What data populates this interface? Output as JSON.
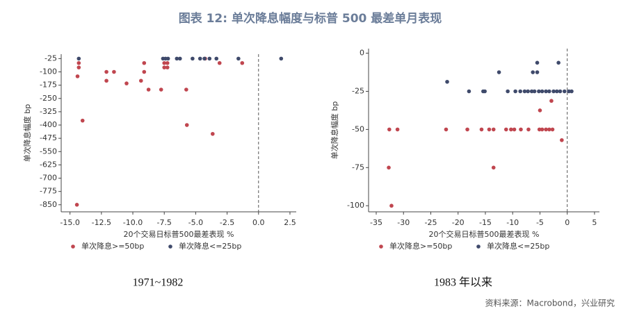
{
  "title": "图表 12: 单次降息幅度与标普 500 最差单月表现",
  "source": "资料来源：Macrobond，兴业研究",
  "chart_data": [
    {
      "type": "scatter",
      "caption": "1971~1982",
      "x_label": "20个交易日标普500最差表现 %",
      "y_label": "单次降息幅度 bp",
      "xlim": [
        -15.7,
        3.0
      ],
      "ylim": [
        -890,
        0
      ],
      "xticks": [
        {
          "value": -15,
          "label": "-15.0"
        },
        -12.5,
        {
          "value": -10,
          "label": "-10.0"
        },
        -7.5,
        {
          "value": -5,
          "label": "-5.0"
        },
        -2.5,
        {
          "value": 0,
          "label": "0.0"
        },
        2.5
      ],
      "yticks": [
        -25,
        -100,
        -175,
        -250,
        -325,
        -400,
        -475,
        -550,
        -625,
        -700,
        -775,
        -850
      ],
      "vline": 0,
      "series": [
        {
          "name": "单次降息>=50bp",
          "color": "#c0464f",
          "x": [
            -14.45,
            -14.4,
            -14.3,
            -14.3,
            -14.0,
            -12.1,
            -12.1,
            -11.5,
            -10.5,
            -9.35,
            -9.1,
            -9.1,
            -8.75,
            -7.75,
            -7.5,
            -7.5,
            -7.25,
            -7.25,
            -5.75,
            -5.7,
            -3.65,
            -4.25,
            -3.1,
            -1.3
          ],
          "y": [
            -850,
            -125,
            -75,
            -50,
            -375,
            -100,
            -150,
            -100,
            -165,
            -150,
            -100,
            -50,
            -200,
            -200,
            -50,
            -75,
            -75,
            -50,
            -200,
            -400,
            -450,
            -25,
            -50,
            -50
          ]
        },
        {
          "name": "单次降息<=25bp",
          "color": "#3f4a6b",
          "x": [
            -14.3,
            -7.6,
            -7.4,
            -7.2,
            -6.5,
            -6.25,
            -5.25,
            -4.65,
            -4.3,
            -3.9,
            -3.35,
            -1.6,
            1.8
          ],
          "y": [
            -25,
            -25,
            -25,
            -25,
            -25,
            -25,
            -25,
            -25,
            -25,
            -25,
            -25,
            -25,
            -25
          ]
        }
      ]
    },
    {
      "type": "scatter",
      "caption": "1983 年以来",
      "x_label": "20个交易日标普500最差表现 %",
      "y_label": "单次降息幅度 bp",
      "xlim": [
        -36.4,
        5.9
      ],
      "ylim": [
        -104,
        3
      ],
      "xticks": [
        -35,
        -30,
        -25,
        -20,
        -15,
        -10,
        -5,
        0,
        5
      ],
      "yticks": [
        0,
        -25,
        -50,
        -75,
        -100
      ],
      "vline": 0,
      "series": [
        {
          "name": "单次降息>=50bp",
          "color": "#c0464f",
          "x": [
            -32.6,
            -32.7,
            -32.2,
            -31.1,
            -22.2,
            -18.3,
            -15.7,
            -14.3,
            -13.5,
            -13.5,
            -11.2,
            -10.3,
            -9.7,
            -8.5,
            -7.1,
            -5.1,
            -5.0,
            -4.6,
            -3.9,
            -3.3,
            -2.7,
            -2.9,
            -1.0
          ],
          "y": [
            -50,
            -75,
            -100,
            -50,
            -50,
            -50,
            -50,
            -50,
            -50,
            -75,
            -50,
            -50,
            -50,
            -50,
            -50,
            -50,
            -37.5,
            -50,
            -50,
            -50,
            -50,
            -31.25,
            -57
          ]
        },
        {
          "name": "单次降息<=25bp",
          "color": "#3f4a6b",
          "x": [
            -22,
            -18,
            -15.4,
            -15.1,
            -12.5,
            -10.9,
            -9.5,
            -8.6,
            -7.8,
            -7.2,
            -6.5,
            -6,
            -6.3,
            -5.5,
            -5.5,
            -5.2,
            -4.6,
            -3.9,
            -3.3,
            -2.5,
            -1.9,
            -1.3,
            -1.6,
            -0.5,
            0.3,
            0.8
          ],
          "y": [
            -18.75,
            -25,
            -25,
            -25,
            -12.5,
            -25,
            -25,
            -25,
            -25,
            -25,
            -25,
            -25,
            -12.5,
            -12.5,
            -6.25,
            -25,
            -25,
            -25,
            -25,
            -25,
            -25,
            -25,
            -6.25,
            -25,
            -25,
            -25
          ]
        }
      ]
    }
  ]
}
